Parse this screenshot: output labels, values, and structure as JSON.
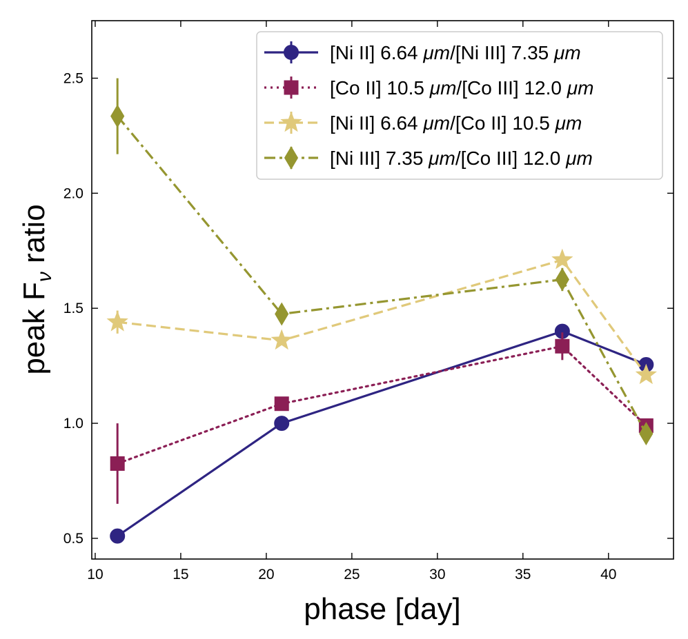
{
  "chart_data": {
    "type": "line",
    "title": "",
    "xlabel": "phase [day]",
    "ylabel_main": "peak F",
    "ylabel_sub": "ν",
    "ylabel_rest": " ratio",
    "xlim": [
      9.8,
      43.8
    ],
    "ylim": [
      0.41,
      2.75
    ],
    "xticks": [
      10,
      15,
      20,
      25,
      30,
      35,
      40
    ],
    "xtick_labels": [
      "10",
      "15",
      "20",
      "25",
      "30",
      "35",
      "40"
    ],
    "yticks": [
      0.5,
      1.0,
      1.5,
      2.0,
      2.5
    ],
    "ytick_labels": [
      "0.5",
      "1.0",
      "1.5",
      "2.0",
      "2.5"
    ],
    "legend_position": "top-right",
    "series": [
      {
        "name": "[Ni II] 6.64 μm/[Ni III] 7.35 μm",
        "legend_parts": [
          [
            "[Ni II] 6.64 ",
            ""
          ],
          [
            "μm",
            "it"
          ],
          [
            "/[Ni III] 7.35 ",
            ""
          ],
          [
            "μm",
            "it"
          ]
        ],
        "color": "#2e2482",
        "marker": "circle",
        "linestyle": "solid",
        "x": [
          11.3,
          20.9,
          37.3,
          42.2
        ],
        "y": [
          0.51,
          1.0,
          1.4,
          1.255
        ],
        "yerr": [
          0.03,
          0.0,
          0.0,
          0.0
        ]
      },
      {
        "name": "[Co II] 10.5 μm/[Co III] 12.0 μm",
        "legend_parts": [
          [
            "[Co II] 10.5 ",
            ""
          ],
          [
            "μm",
            "it"
          ],
          [
            "/[Co III] 12.0 ",
            ""
          ],
          [
            "μm",
            "it"
          ]
        ],
        "color": "#8b1f55",
        "marker": "square",
        "linestyle": "dotted",
        "x": [
          11.3,
          20.9,
          37.3,
          42.2
        ],
        "y": [
          0.825,
          1.085,
          1.335,
          0.99
        ],
        "yerr": [
          0.175,
          0.0,
          0.06,
          0.0
        ]
      },
      {
        "name": "[Ni II] 6.64 μm/[Co II] 10.5 μm",
        "legend_parts": [
          [
            "[Ni II] 6.64 ",
            ""
          ],
          [
            "μm",
            "it"
          ],
          [
            "/[Co II] 10.5 ",
            ""
          ],
          [
            "μm",
            "it"
          ]
        ],
        "color": "#e0c97a",
        "marker": "star",
        "linestyle": "dashed",
        "x": [
          11.3,
          20.9,
          37.3,
          42.2
        ],
        "y": [
          1.44,
          1.36,
          1.71,
          1.21
        ],
        "yerr": [
          0.05,
          0.0,
          0.0,
          0.0
        ]
      },
      {
        "name": "[Ni III] 7.35 μm/[Co III] 12.0 μm",
        "legend_parts": [
          [
            "[Ni III] 7.35 ",
            ""
          ],
          [
            "μm",
            "it"
          ],
          [
            "/[Co III] 12.0 ",
            ""
          ],
          [
            "μm",
            "it"
          ]
        ],
        "color": "#959630",
        "marker": "diamond",
        "linestyle": "dashdot",
        "x": [
          11.3,
          20.9,
          37.3,
          42.2
        ],
        "y": [
          2.335,
          1.475,
          1.625,
          0.955
        ],
        "yerr": [
          0.165,
          0.0,
          0.05,
          0.0
        ]
      }
    ]
  }
}
